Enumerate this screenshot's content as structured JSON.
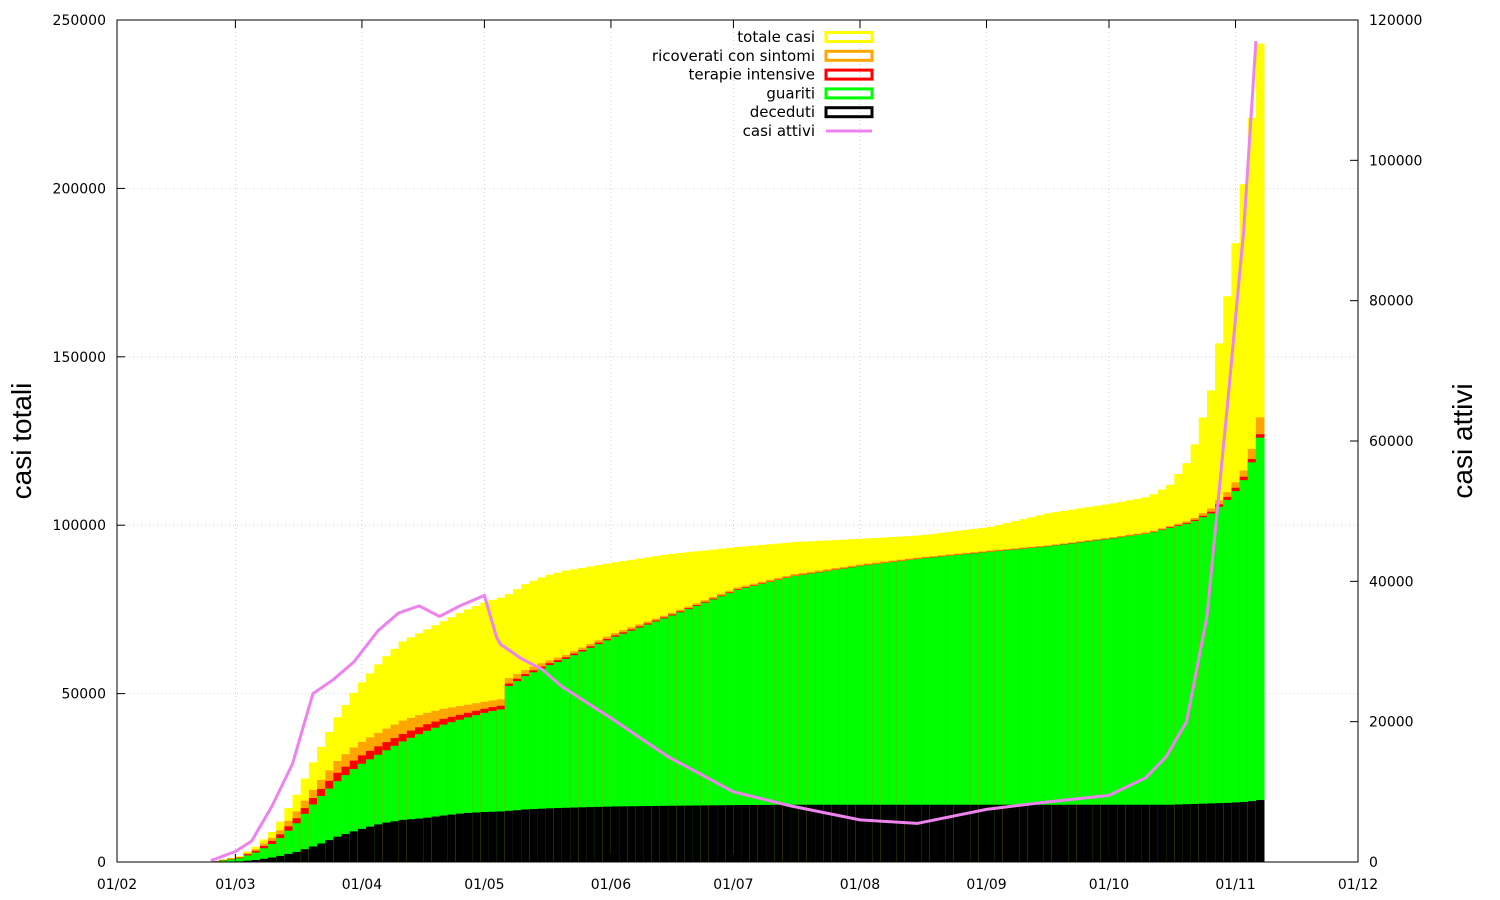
{
  "chart_data": {
    "type": "area",
    "title": "",
    "ylabel": "casi totali",
    "y2label": "casi attivi",
    "xlabel": "",
    "x_ticks": [
      "01/02",
      "01/03",
      "01/04",
      "01/05",
      "01/06",
      "01/07",
      "01/08",
      "01/09",
      "01/10",
      "01/11",
      "01/12"
    ],
    "x_tick_dates": [
      "2020-02-01",
      "2020-03-01",
      "2020-04-01",
      "2020-05-01",
      "2020-06-01",
      "2020-07-01",
      "2020-08-01",
      "2020-09-01",
      "2020-10-01",
      "2020-11-01",
      "2020-12-01"
    ],
    "xlim": [
      "2020-02-01",
      "2020-12-01"
    ],
    "ylim": [
      0,
      250000
    ],
    "y_ticks": [
      0,
      50000,
      100000,
      150000,
      200000,
      250000
    ],
    "y2lim": [
      0,
      120000
    ],
    "y2_ticks": [
      0,
      20000,
      40000,
      60000,
      80000,
      100000,
      120000
    ],
    "grid": true,
    "legend_position": "top-center",
    "colors": {
      "totale_casi": "#ffff00",
      "ricoverati": "#ffa500",
      "terapie": "#ff0000",
      "guariti": "#00ff00",
      "deceduti": "#000000",
      "attivi": "#ee82ee"
    },
    "legend": {
      "totale_casi": "totale casi",
      "ricoverati": "ricoverati con sintomi",
      "terapie": "terapie intensive",
      "guariti": "guariti",
      "deceduti": "deceduti",
      "attivi": "casi attivi"
    },
    "series_axis": {
      "stacked_bars": "left",
      "casi_attivi": "right"
    },
    "dates": [
      "2020-02-24",
      "2020-03-01",
      "2020-03-05",
      "2020-03-10",
      "2020-03-15",
      "2020-03-20",
      "2020-03-25",
      "2020-03-30",
      "2020-04-05",
      "2020-04-10",
      "2020-04-15",
      "2020-04-20",
      "2020-04-25",
      "2020-05-01",
      "2020-05-04",
      "2020-05-05",
      "2020-05-10",
      "2020-05-15",
      "2020-05-20",
      "2020-06-01",
      "2020-06-15",
      "2020-07-01",
      "2020-07-15",
      "2020-08-01",
      "2020-08-15",
      "2020-09-01",
      "2020-09-15",
      "2020-10-01",
      "2020-10-10",
      "2020-10-15",
      "2020-10-20",
      "2020-10-25",
      "2020-10-30",
      "2020-11-03",
      "2020-11-06"
    ],
    "totale_casi": [
      300,
      1700,
      4500,
      10000,
      20000,
      32000,
      43000,
      52000,
      60000,
      65500,
      68500,
      71500,
      74500,
      77500,
      78500,
      78800,
      82500,
      85000,
      86500,
      89000,
      91500,
      93500,
      95000,
      96000,
      97000,
      99500,
      103500,
      106500,
      108500,
      112000,
      120000,
      140000,
      175000,
      210000,
      243000
    ],
    "ricoverati": [
      250,
      1500,
      3800,
      8000,
      15000,
      23000,
      30000,
      35000,
      39000,
      42000,
      44000,
      45500,
      46500,
      47800,
      48300,
      54000,
      57000,
      59500,
      61500,
      68000,
      74000,
      81500,
      85500,
      88500,
      90500,
      92500,
      94000,
      96500,
      98000,
      99800,
      101500,
      105000,
      111000,
      118000,
      132000
    ],
    "terapie": [
      200,
      1300,
      3300,
      7000,
      13000,
      20500,
      26500,
      31000,
      35000,
      38000,
      40500,
      42500,
      44000,
      45800,
      46400,
      52300,
      55800,
      58600,
      60800,
      67300,
      73500,
      81000,
      85000,
      88100,
      90200,
      92200,
      93800,
      96200,
      97700,
      99400,
      101000,
      104000,
      109500,
      116000,
      127000
    ],
    "guariti": [
      150,
      1100,
      2800,
      6000,
      11500,
      18500,
      24000,
      28500,
      32500,
      35800,
      38500,
      40800,
      42600,
      44600,
      45300,
      51500,
      55200,
      58000,
      60300,
      66900,
      73200,
      80800,
      84900,
      88000,
      90100,
      92100,
      93700,
      96100,
      97600,
      99200,
      100700,
      103500,
      108500,
      115000,
      126000
    ],
    "deceduti": [
      50,
      200,
      600,
      1500,
      3000,
      5000,
      7500,
      9500,
      11500,
      12500,
      13000,
      13800,
      14500,
      14900,
      15000,
      15100,
      15600,
      15900,
      16100,
      16500,
      16700,
      16900,
      17000,
      17000,
      17000,
      17000,
      17000,
      17000,
      17000,
      17000,
      17200,
      17400,
      17600,
      17900,
      18400
    ],
    "casi_attivi": [
      200,
      1500,
      3000,
      8000,
      14000,
      24000,
      26000,
      28500,
      33000,
      35500,
      36500,
      35000,
      36500,
      38000,
      32000,
      31000,
      29000,
      27500,
      25000,
      20500,
      15000,
      10000,
      8000,
      6000,
      5500,
      7500,
      8500,
      9500,
      12000,
      15000,
      20000,
      35000,
      65000,
      90000,
      117000
    ]
  }
}
